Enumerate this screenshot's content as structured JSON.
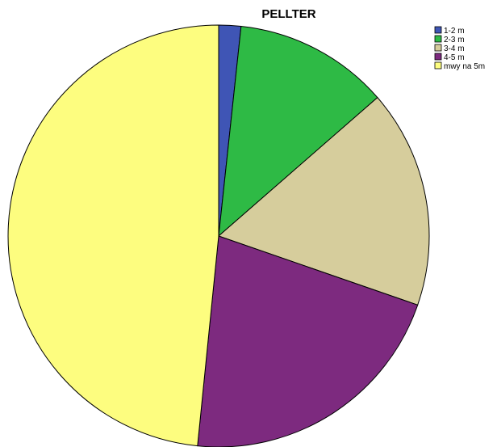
{
  "chart_data": {
    "type": "pie",
    "title": "PELLTER",
    "categories": [
      "1-2 m",
      "2-3 m",
      "3-4 m",
      "4-5 m",
      "mwy na 5m"
    ],
    "values": [
      1.7,
      11.9,
      16.7,
      21.3,
      48.4
    ],
    "colors": [
      "#3f55b5",
      "#2eba45",
      "#d6cd9c",
      "#7d2a7f",
      "#fdfd7f"
    ],
    "legend": "top-right",
    "start_angle": "12 o'clock",
    "direction": "clockwise"
  }
}
